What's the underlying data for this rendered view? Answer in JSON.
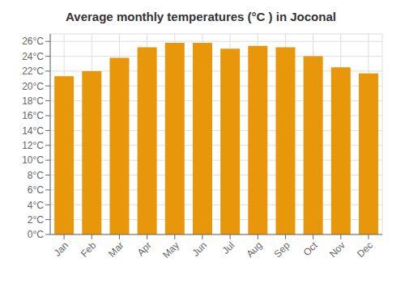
{
  "chart_data": {
    "type": "bar",
    "title": "Average monthly temperatures (°C ) in Joconal",
    "categories": [
      "Jan",
      "Feb",
      "Mar",
      "Apr",
      "May",
      "Jun",
      "Jul",
      "Aug",
      "Sep",
      "Oct",
      "Nov",
      "Dec"
    ],
    "values": [
      21.3,
      22.0,
      23.8,
      25.2,
      25.8,
      25.8,
      25.0,
      25.4,
      25.2,
      24.0,
      22.5,
      21.7
    ],
    "color": "#E8960A",
    "ylim": [
      0,
      27
    ],
    "yticks": [
      {
        "value": 0,
        "label": "0°C"
      },
      {
        "value": 2,
        "label": "2°C"
      },
      {
        "value": 4,
        "label": "4°C"
      },
      {
        "value": 6,
        "label": "6°C"
      },
      {
        "value": 8,
        "label": "8°C"
      },
      {
        "value": 10,
        "label": "10°C"
      },
      {
        "value": 12,
        "label": "12°C"
      },
      {
        "value": 14,
        "label": "14°C"
      },
      {
        "value": 16,
        "label": "16°C"
      },
      {
        "value": 18,
        "label": "18°C"
      },
      {
        "value": 20,
        "label": "20°C"
      },
      {
        "value": 22,
        "label": "22°C"
      },
      {
        "value": 24,
        "label": "24°C"
      },
      {
        "value": 26,
        "label": "26°C"
      }
    ],
    "grid": true
  }
}
